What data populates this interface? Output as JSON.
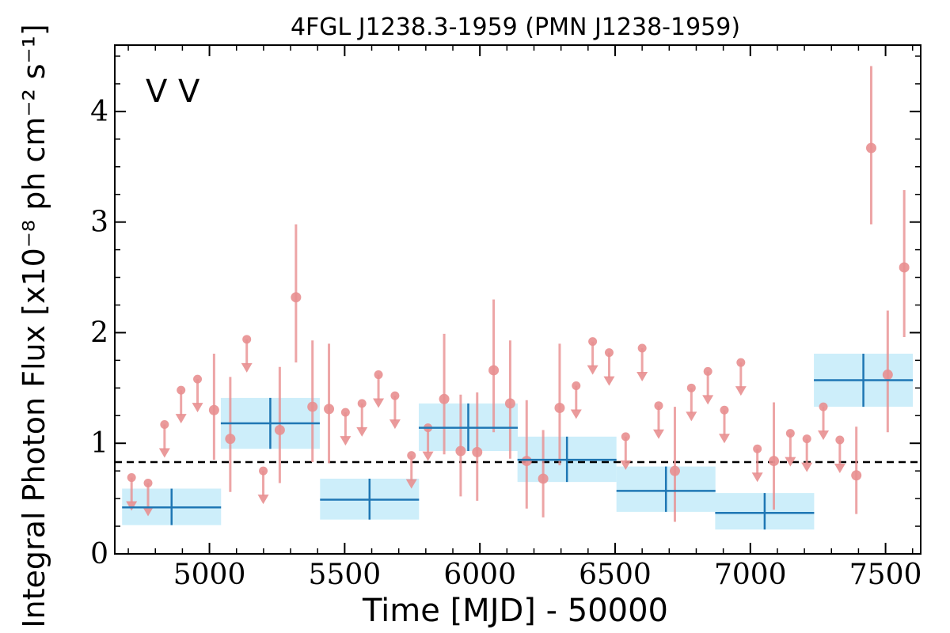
{
  "chart_data": {
    "type": "scatter",
    "title": "4FGL J1238.3-1959 (PMN J1238-1959)",
    "xlabel": "Time [MJD] - 50000",
    "ylabel": "Integral Photon Flux [x10⁻⁸ ph cm⁻² s⁻¹]",
    "xlim": [
      4650,
      7630
    ],
    "ylim": [
      0,
      4.6
    ],
    "xticks": [
      5000,
      5500,
      6000,
      6500,
      7000,
      7500
    ],
    "xtick_labels": [
      "5000",
      "5500",
      "6000",
      "6500",
      "7000",
      "7500"
    ],
    "yticks": [
      0,
      1,
      2,
      3,
      4
    ],
    "ytick_labels": [
      "0",
      "1",
      "2",
      "3",
      "4"
    ],
    "grid": false,
    "markers": [
      {
        "label": "V",
        "color": "#1f77b4"
      },
      {
        "label": "V",
        "color": "#d62728"
      }
    ],
    "mean_flux": 0.83,
    "colors": {
      "bins": "#1f77b4",
      "bin_band": "#cdeefa",
      "points": "#e88f90"
    },
    "bins": [
      {
        "x": 4860,
        "xerr": 183,
        "y": 0.42,
        "ylo": 0.26,
        "yhi": 0.59
      },
      {
        "x": 5225,
        "xerr": 183,
        "y": 1.18,
        "ylo": 0.95,
        "yhi": 1.41
      },
      {
        "x": 5592,
        "xerr": 183,
        "y": 0.49,
        "ylo": 0.31,
        "yhi": 0.68
      },
      {
        "x": 5957,
        "xerr": 183,
        "y": 1.14,
        "ylo": 0.93,
        "yhi": 1.36
      },
      {
        "x": 6322,
        "xerr": 183,
        "y": 0.85,
        "ylo": 0.65,
        "yhi": 1.06
      },
      {
        "x": 6688,
        "xerr": 183,
        "y": 0.57,
        "ylo": 0.38,
        "yhi": 0.79
      },
      {
        "x": 7053,
        "xerr": 183,
        "y": 0.37,
        "ylo": 0.22,
        "yhi": 0.55
      },
      {
        "x": 7418,
        "xerr": 183,
        "y": 1.57,
        "ylo": 1.33,
        "yhi": 1.81
      }
    ],
    "points": [
      {
        "x": 5017,
        "y": 1.3,
        "ylo": 0.85,
        "yhi": 1.81
      },
      {
        "x": 5077,
        "y": 1.04,
        "ylo": 0.56,
        "yhi": 1.6
      },
      {
        "x": 5260,
        "y": 1.12,
        "ylo": 0.64,
        "yhi": 1.69
      },
      {
        "x": 5320,
        "y": 2.32,
        "ylo": 1.73,
        "yhi": 2.98
      },
      {
        "x": 5381,
        "y": 1.33,
        "ylo": 0.83,
        "yhi": 1.93
      },
      {
        "x": 5442,
        "y": 1.31,
        "ylo": 0.82,
        "yhi": 1.9
      },
      {
        "x": 5868,
        "y": 1.4,
        "ylo": 0.9,
        "yhi": 1.99
      },
      {
        "x": 5929,
        "y": 0.93,
        "ylo": 0.52,
        "yhi": 1.44
      },
      {
        "x": 5990,
        "y": 0.92,
        "ylo": 0.48,
        "yhi": 1.46
      },
      {
        "x": 6051,
        "y": 1.66,
        "ylo": 1.1,
        "yhi": 2.3
      },
      {
        "x": 6112,
        "y": 1.36,
        "ylo": 0.86,
        "yhi": 1.93
      },
      {
        "x": 6173,
        "y": 0.84,
        "ylo": 0.41,
        "yhi": 1.39
      },
      {
        "x": 6234,
        "y": 0.68,
        "ylo": 0.33,
        "yhi": 1.12
      },
      {
        "x": 6295,
        "y": 1.32,
        "ylo": 0.8,
        "yhi": 1.9
      },
      {
        "x": 6721,
        "y": 0.75,
        "ylo": 0.29,
        "yhi": 1.33
      },
      {
        "x": 7087,
        "y": 0.84,
        "ylo": 0.4,
        "yhi": 1.37
      },
      {
        "x": 7392,
        "y": 0.71,
        "ylo": 0.36,
        "yhi": 1.15
      },
      {
        "x": 7447,
        "y": 3.67,
        "ylo": 2.98,
        "yhi": 4.41
      },
      {
        "x": 7508,
        "y": 1.62,
        "ylo": 1.1,
        "yhi": 2.2
      },
      {
        "x": 7569,
        "y": 2.59,
        "ylo": 1.96,
        "yhi": 3.29
      }
    ],
    "upper_limits": [
      {
        "x": 4712,
        "y": 0.69
      },
      {
        "x": 4773,
        "y": 0.64
      },
      {
        "x": 4834,
        "y": 1.17
      },
      {
        "x": 4895,
        "y": 1.48
      },
      {
        "x": 4956,
        "y": 1.58
      },
      {
        "x": 5138,
        "y": 1.94
      },
      {
        "x": 5199,
        "y": 0.75
      },
      {
        "x": 5503,
        "y": 1.28
      },
      {
        "x": 5564,
        "y": 1.36
      },
      {
        "x": 5625,
        "y": 1.62
      },
      {
        "x": 5686,
        "y": 1.43
      },
      {
        "x": 5747,
        "y": 0.89
      },
      {
        "x": 5808,
        "y": 1.14
      },
      {
        "x": 6356,
        "y": 1.52
      },
      {
        "x": 6417,
        "y": 1.92
      },
      {
        "x": 6478,
        "y": 1.82
      },
      {
        "x": 6539,
        "y": 1.06
      },
      {
        "x": 6600,
        "y": 1.86
      },
      {
        "x": 6661,
        "y": 1.34
      },
      {
        "x": 6782,
        "y": 1.5
      },
      {
        "x": 6843,
        "y": 1.65
      },
      {
        "x": 6904,
        "y": 1.3
      },
      {
        "x": 6965,
        "y": 1.73
      },
      {
        "x": 7026,
        "y": 0.95
      },
      {
        "x": 7148,
        "y": 1.09
      },
      {
        "x": 7209,
        "y": 1.04
      },
      {
        "x": 7270,
        "y": 1.33
      },
      {
        "x": 7331,
        "y": 1.03
      }
    ]
  }
}
